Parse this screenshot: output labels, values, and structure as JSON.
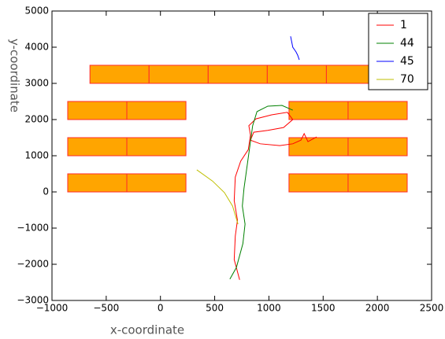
{
  "chart_data": {
    "type": "line",
    "x_label": "x-coordinate",
    "y_label": "y-coordinate",
    "xlim": [
      -1000,
      2500
    ],
    "ylim": [
      -3000,
      5000
    ],
    "xticks": [
      {
        "value": -1000,
        "label": "−1000"
      },
      {
        "value": -500,
        "label": "−500"
      },
      0,
      500,
      1000,
      1500,
      2000,
      2500
    ],
    "yticks": [
      {
        "value": -3000,
        "label": "−3000"
      },
      {
        "value": -2000,
        "label": "−2000"
      },
      {
        "value": -1000,
        "label": "−1000"
      },
      0,
      1000,
      2000,
      3000,
      4000,
      5000
    ],
    "legend": "upper right",
    "rectangle_color": "#ffa500",
    "rectangle_edge": "#ff2a2a",
    "rectangles": [
      [
        -650,
        3000,
        -105,
        3500
      ],
      [
        -105,
        3000,
        440,
        3500
      ],
      [
        440,
        3000,
        985,
        3500
      ],
      [
        985,
        3000,
        1530,
        3500
      ],
      [
        1530,
        3000,
        2075,
        3500
      ],
      [
        -855,
        2000,
        -310,
        2500
      ],
      [
        -310,
        2000,
        235,
        2500
      ],
      [
        1185,
        2000,
        1730,
        2500
      ],
      [
        1730,
        2000,
        2275,
        2500
      ],
      [
        -855,
        1000,
        -310,
        1500
      ],
      [
        -310,
        1000,
        235,
        1500
      ],
      [
        1185,
        1000,
        1730,
        1500
      ],
      [
        1730,
        1000,
        2275,
        1500
      ],
      [
        -855,
        0,
        -310,
        500
      ],
      [
        -310,
        0,
        235,
        500
      ],
      [
        1185,
        0,
        1730,
        500
      ],
      [
        1730,
        0,
        2275,
        500
      ]
    ],
    "series": [
      {
        "name": "1",
        "color": "#ff0000",
        "x": [
          730,
          680,
          690,
          710,
          680,
          690,
          740,
          810,
          830,
          815,
          880,
          1025,
          1170,
          1220,
          1135,
          990,
          860,
          830,
          920,
          1100,
          1220,
          1295,
          1325,
          1360,
          1440
        ],
        "y": [
          -2430,
          -1870,
          -1220,
          -780,
          -240,
          410,
          850,
          1170,
          1570,
          1830,
          2020,
          2130,
          2200,
          2000,
          1780,
          1700,
          1650,
          1430,
          1330,
          1280,
          1330,
          1430,
          1610,
          1390,
          1520
        ]
      },
      {
        "name": "44",
        "color": "#008000",
        "x": [
          640,
          700,
          760,
          780,
          755,
          770,
          800,
          830,
          850,
          890,
          990,
          1120,
          1220
        ],
        "y": [
          -2410,
          -2090,
          -1430,
          -890,
          -390,
          90,
          740,
          1390,
          1830,
          2220,
          2370,
          2390,
          2260
        ]
      },
      {
        "name": "45",
        "color": "#0000ff",
        "x": [
          1200,
          1220,
          1250,
          1265,
          1280
        ],
        "y": [
          4300,
          4000,
          3870,
          3780,
          3650
        ]
      },
      {
        "name": "70",
        "color": "#bfbf00",
        "x": [
          335,
          480,
          590,
          665,
          715
        ],
        "y": [
          610,
          300,
          -20,
          -390,
          -890
        ]
      }
    ]
  }
}
